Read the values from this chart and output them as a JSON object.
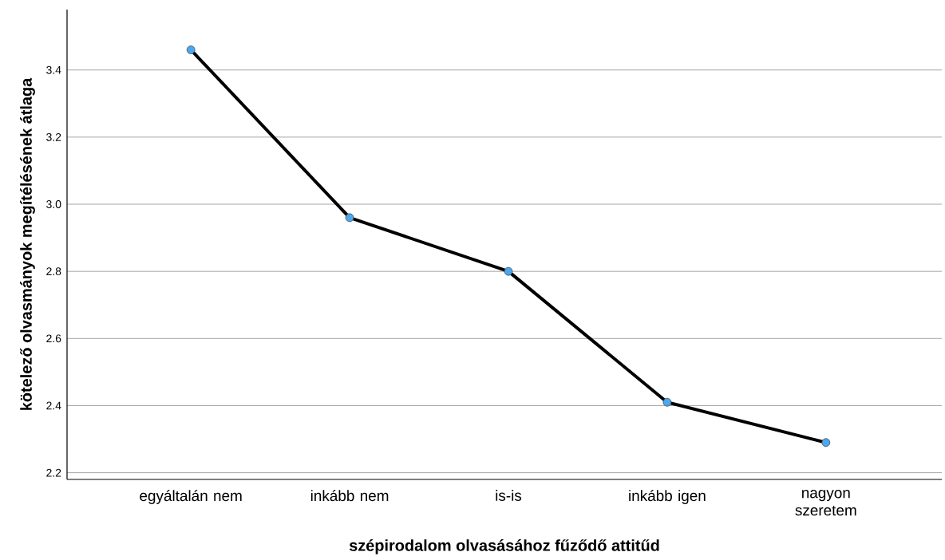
{
  "chart_data": {
    "type": "line",
    "xlabel": "szépirodalom olvasásához fűződő attitűd",
    "ylabel": "kötelező olvasmányok megítélésének átlaga",
    "categories": [
      "egyáltalán nem",
      "inkább nem",
      "is-is",
      "inkább igen",
      "nagyon szeretem"
    ],
    "values": [
      3.46,
      2.96,
      2.8,
      2.41,
      2.29
    ],
    "color": "#000000",
    "marker": "circle",
    "line_style": "solid",
    "ylim": [
      2.18,
      3.58
    ],
    "yticks": [
      2.2,
      2.4,
      2.6,
      2.8,
      {
        "value": 3.0,
        "label": "3.0"
      },
      3.2,
      3.4
    ],
    "grid": "y"
  }
}
